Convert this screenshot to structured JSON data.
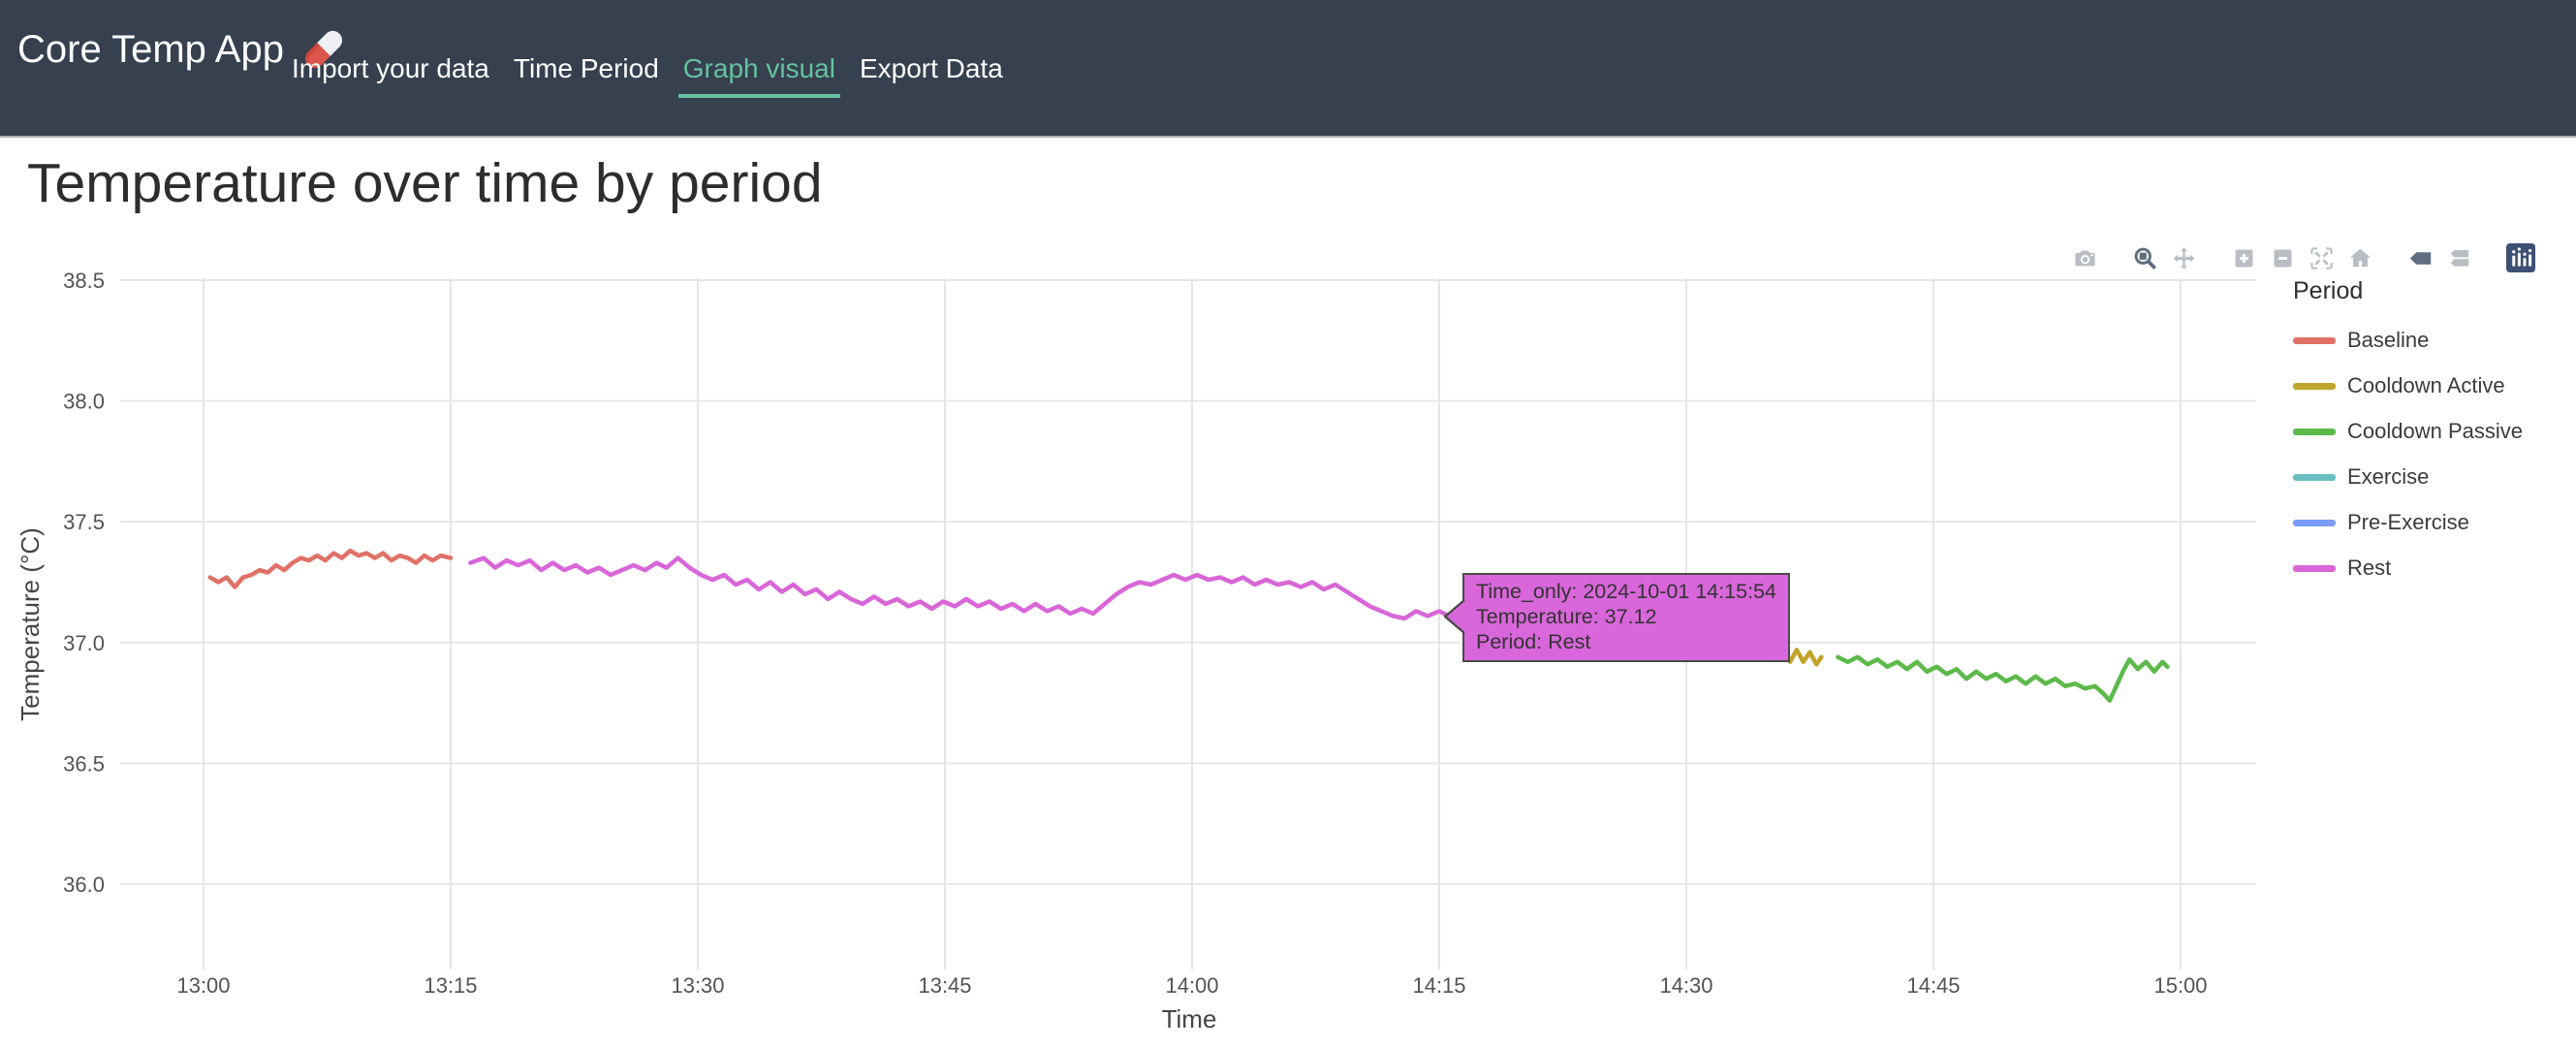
{
  "navbar": {
    "brand": "Core Temp App",
    "brand_icon": "pill-icon",
    "links": [
      {
        "label": "Import your data",
        "active": false
      },
      {
        "label": "Time Period",
        "active": false
      },
      {
        "label": "Graph visual",
        "active": true
      },
      {
        "label": "Export Data",
        "active": false
      }
    ],
    "colors": {
      "background": "#36404f",
      "link": "#ffffff",
      "active_link": "#64c29e"
    }
  },
  "page": {
    "title": "Temperature over time by period"
  },
  "modebar": {
    "inactive_color": "#b9bdc4",
    "active_color": "#5e6e80",
    "logo_color": "#3e4f73",
    "buttons": [
      {
        "id": "download-png",
        "icon": "camera-icon",
        "active": false
      },
      {
        "id": "zoom",
        "icon": "zoom-icon",
        "active": true
      },
      {
        "id": "pan",
        "icon": "pan-icon",
        "active": false
      },
      {
        "id": "zoom-in",
        "icon": "zoom-in-icon",
        "active": false
      },
      {
        "id": "zoom-out",
        "icon": "zoom-out-icon",
        "active": false
      },
      {
        "id": "autoscale",
        "icon": "autoscale-icon",
        "active": false
      },
      {
        "id": "reset-axes",
        "icon": "home-icon",
        "active": false
      },
      {
        "id": "hover-closest",
        "icon": "hover-closest-icon",
        "active": true
      },
      {
        "id": "hover-compare",
        "icon": "hover-compare-icon",
        "active": false
      },
      {
        "id": "plotly-logo",
        "icon": "plotly-logo-icon",
        "active": false
      }
    ]
  },
  "legend": {
    "title": "Period",
    "items": [
      {
        "label": "Baseline",
        "color": "#e07167"
      },
      {
        "label": "Cooldown Active",
        "color": "#c1a42b"
      },
      {
        "label": "Cooldown Passive",
        "color": "#5cb94a"
      },
      {
        "label": "Exercise",
        "color": "#67c0c2"
      },
      {
        "label": "Pre-Exercise",
        "color": "#7a9cf8"
      },
      {
        "label": "Rest",
        "color": "#d866d8"
      }
    ]
  },
  "tooltip": {
    "lines": [
      "Time_only: 2024-10-01 14:15:54",
      "Temperature: 37.12",
      "Period: Rest"
    ],
    "background": "#d966da",
    "border": "#4b4b4b",
    "text_color": "#333333"
  },
  "chart_data": {
    "type": "line",
    "title": "Temperature over time by period",
    "xlabel": "Time",
    "ylabel": "Temperature (°C)",
    "grid": true,
    "grid_color": "#e6e6e6",
    "legend_position": "right",
    "x_ticks": [
      "13:00",
      "13:15",
      "13:30",
      "13:45",
      "14:00",
      "14:15",
      "14:30",
      "14:45",
      "15:00"
    ],
    "x_tick_minutes": [
      0,
      15,
      30,
      45,
      60,
      75,
      90,
      105,
      120
    ],
    "x_units": "minutes after 13:00",
    "y_ticks": [
      36.0,
      36.5,
      37.0,
      37.5,
      38.0,
      38.5
    ],
    "y_range": [
      35.65,
      38.51
    ],
    "x_range_minutes": [
      -5.1,
      124.6
    ],
    "hover_label": {
      "series": "Rest",
      "time": "2024-10-01 14:15:54",
      "temperature": 37.12
    },
    "series": [
      {
        "name": "Baseline",
        "color": "#e07167",
        "x": [
          0.4,
          0.9,
          1.4,
          1.9,
          2.4,
          2.9,
          3.4,
          3.9,
          4.4,
          4.9,
          5.4,
          5.9,
          6.4,
          6.9,
          7.4,
          7.9,
          8.4,
          8.9,
          9.4,
          9.9,
          10.4,
          10.9,
          11.4,
          11.9,
          12.4,
          12.9,
          13.4,
          13.9,
          14.4,
          15.0
        ],
        "y": [
          37.27,
          37.25,
          37.27,
          37.23,
          37.27,
          37.28,
          37.3,
          37.29,
          37.32,
          37.3,
          37.33,
          37.35,
          37.34,
          37.36,
          37.34,
          37.37,
          37.35,
          37.38,
          37.36,
          37.37,
          37.35,
          37.37,
          37.34,
          37.36,
          37.35,
          37.33,
          37.36,
          37.34,
          37.36,
          37.35
        ]
      },
      {
        "name": "Cooldown Active",
        "color": "#c1a42b",
        "x": [
          95.9,
          96.3,
          96.7,
          97.1,
          97.5,
          97.9,
          98.2
        ],
        "y": [
          36.96,
          36.92,
          36.97,
          36.92,
          36.96,
          36.91,
          36.94
        ]
      },
      {
        "name": "Cooldown Passive",
        "color": "#5cb94a",
        "x": [
          99.2,
          99.8,
          100.4,
          101.0,
          101.6,
          102.2,
          102.8,
          103.4,
          104.0,
          104.6,
          105.2,
          105.8,
          106.4,
          107.0,
          107.6,
          108.2,
          108.8,
          109.4,
          110.0,
          110.6,
          111.2,
          111.8,
          112.4,
          113.0,
          113.6,
          114.2,
          114.8,
          115.3,
          115.7,
          116.1,
          116.5,
          116.9,
          117.4,
          117.9,
          118.4,
          118.9,
          119.2
        ],
        "y": [
          36.94,
          36.92,
          36.94,
          36.91,
          36.93,
          36.9,
          36.92,
          36.89,
          36.92,
          36.88,
          36.9,
          36.87,
          36.89,
          36.85,
          36.88,
          36.85,
          36.87,
          36.84,
          36.86,
          36.83,
          36.86,
          36.83,
          36.85,
          36.82,
          36.83,
          36.81,
          36.82,
          36.79,
          36.76,
          36.82,
          36.88,
          36.93,
          36.89,
          36.92,
          36.88,
          36.92,
          36.9
        ]
      },
      {
        "name": "Exercise",
        "color": "#67c0c2",
        "x": [],
        "y": []
      },
      {
        "name": "Pre-Exercise",
        "color": "#7a9cf8",
        "x": [],
        "y": []
      },
      {
        "name": "Rest",
        "color": "#d866d8",
        "x": [
          16.2,
          17.0,
          17.7,
          18.4,
          19.1,
          19.8,
          20.5,
          21.2,
          21.9,
          22.6,
          23.3,
          24.0,
          24.7,
          25.4,
          26.1,
          26.8,
          27.5,
          28.1,
          28.8,
          29.5,
          30.2,
          30.9,
          31.6,
          32.3,
          33.0,
          33.7,
          34.4,
          35.1,
          35.8,
          36.5,
          37.2,
          37.9,
          38.6,
          39.3,
          40.0,
          40.7,
          41.4,
          42.1,
          42.8,
          43.5,
          44.2,
          44.9,
          45.6,
          46.3,
          47.0,
          47.7,
          48.4,
          49.1,
          49.8,
          50.5,
          51.2,
          51.9,
          52.6,
          53.3,
          54.0,
          54.7,
          55.4,
          56.1,
          56.8,
          57.5,
          58.2,
          58.9,
          59.6,
          60.3,
          61.0,
          61.7,
          62.4,
          63.1,
          63.8,
          64.5,
          65.2,
          65.9,
          66.6,
          67.3,
          68.0,
          68.7,
          69.4,
          70.1,
          70.8,
          71.5,
          72.2,
          72.9,
          73.6,
          74.3,
          75.0,
          75.6,
          76.3
        ],
        "y": [
          37.33,
          37.35,
          37.31,
          37.34,
          37.32,
          37.34,
          37.3,
          37.33,
          37.3,
          37.32,
          37.29,
          37.31,
          37.28,
          37.3,
          37.32,
          37.3,
          37.33,
          37.31,
          37.35,
          37.31,
          37.28,
          37.26,
          37.28,
          37.24,
          37.26,
          37.22,
          37.25,
          37.21,
          37.24,
          37.2,
          37.22,
          37.18,
          37.21,
          37.18,
          37.16,
          37.19,
          37.16,
          37.18,
          37.15,
          37.17,
          37.14,
          37.17,
          37.15,
          37.18,
          37.15,
          37.17,
          37.14,
          37.16,
          37.13,
          37.16,
          37.13,
          37.15,
          37.12,
          37.14,
          37.12,
          37.16,
          37.2,
          37.23,
          37.25,
          37.24,
          37.26,
          37.28,
          37.26,
          37.28,
          37.26,
          37.27,
          37.25,
          37.27,
          37.24,
          37.26,
          37.24,
          37.25,
          37.23,
          37.25,
          37.22,
          37.24,
          37.21,
          37.18,
          37.15,
          37.13,
          37.11,
          37.1,
          37.13,
          37.11,
          37.13,
          37.11,
          37.12
        ]
      }
    ]
  }
}
